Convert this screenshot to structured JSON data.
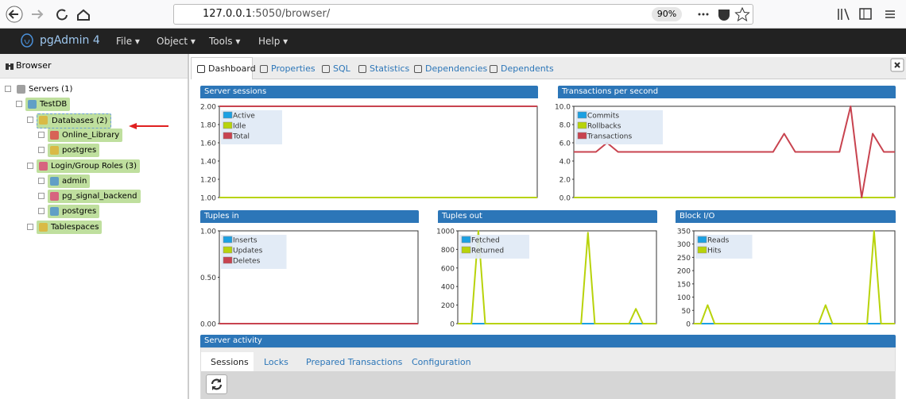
{
  "browser_bar": {
    "url_host": "127.0.0.1",
    "url_path": ":5050/browser/",
    "zoom": "90%"
  },
  "navbar": {
    "brand": "pgAdmin 4",
    "menus": [
      "File ▾",
      "Object ▾",
      "Tools ▾",
      "Help ▾"
    ]
  },
  "browser_panel": {
    "title": "Browser",
    "tree": [
      {
        "label": "Servers (1)",
        "level": 0
      },
      {
        "label": "TestDB",
        "level": 1
      },
      {
        "label": "Databases (2)",
        "level": 2
      },
      {
        "label": "Online_Library",
        "level": 3
      },
      {
        "label": "postgres",
        "level": 3
      },
      {
        "label": "Login/Group Roles (3)",
        "level": 2
      },
      {
        "label": "admin",
        "level": 3
      },
      {
        "label": "pg_signal_backend",
        "level": 3
      },
      {
        "label": "postgres",
        "level": 3
      },
      {
        "label": "Tablespaces",
        "level": 2
      }
    ]
  },
  "tabs": [
    "Dashboard",
    "Properties",
    "SQL",
    "Statistics",
    "Dependencies",
    "Dependents"
  ],
  "chart_data": [
    {
      "type": "line",
      "title": "Server sessions",
      "ylim": [
        1,
        2
      ],
      "yticks": [
        {
          "value": 1,
          "label": "1.00"
        },
        {
          "value": 1.2,
          "label": "1.20"
        },
        {
          "value": 1.4,
          "label": "1.40"
        },
        {
          "value": 1.6,
          "label": "1.60"
        },
        {
          "value": 1.8,
          "label": "1.80"
        },
        {
          "value": 2,
          "label": "2.00"
        }
      ],
      "series": [
        {
          "name": "Active",
          "color": "#1ba0e2",
          "values": [
            1,
            1,
            1,
            1,
            1,
            1,
            1,
            1,
            1,
            1,
            1,
            1,
            1,
            1,
            1,
            1,
            1,
            1,
            1,
            1
          ]
        },
        {
          "name": "Idle",
          "color": "#b8d30b",
          "values": [
            1,
            1,
            1,
            1,
            1,
            1,
            1,
            1,
            1,
            1,
            1,
            1,
            1,
            1,
            1,
            1,
            1,
            1,
            1,
            1
          ]
        },
        {
          "name": "Total",
          "color": "#c8434f",
          "values": [
            2,
            2,
            2,
            2,
            2,
            2,
            2,
            2,
            2,
            2,
            2,
            2,
            2,
            2,
            2,
            2,
            2,
            2,
            2,
            2
          ]
        }
      ]
    },
    {
      "type": "line",
      "title": "Transactions per second",
      "ylim": [
        0,
        10
      ],
      "yticks": [
        {
          "value": 0,
          "label": "0.0"
        },
        {
          "value": 2,
          "label": "2.0"
        },
        {
          "value": 4,
          "label": "4.0"
        },
        {
          "value": 6,
          "label": "6.0"
        },
        {
          "value": 8,
          "label": "8.0"
        },
        {
          "value": 10,
          "label": "10.0"
        }
      ],
      "series": [
        {
          "name": "Commits",
          "color": "#1ba0e2",
          "values": [
            0,
            0,
            0,
            0,
            0,
            0,
            0,
            0,
            0,
            0,
            0,
            0,
            0,
            0,
            0,
            0,
            0,
            0,
            0,
            0,
            0,
            0,
            0,
            0,
            0,
            0,
            0,
            0,
            0,
            0
          ]
        },
        {
          "name": "Rollbacks",
          "color": "#b8d30b",
          "values": [
            0,
            0,
            0,
            0,
            0,
            0,
            0,
            0,
            0,
            0,
            0,
            0,
            0,
            0,
            0,
            0,
            0,
            0,
            0,
            0,
            0,
            0,
            0,
            0,
            0,
            0,
            0,
            0,
            0,
            0
          ]
        },
        {
          "name": "Transactions",
          "color": "#c8434f",
          "values": [
            5,
            5,
            5,
            6,
            5,
            5,
            5,
            5,
            5,
            5,
            5,
            5,
            5,
            5,
            5,
            5,
            5,
            5,
            5,
            7,
            5,
            5,
            5,
            5,
            5,
            10,
            0,
            7,
            5,
            5
          ]
        }
      ]
    },
    {
      "type": "line",
      "title": "Tuples in",
      "ylim": [
        0,
        1
      ],
      "yticks": [
        {
          "value": 0,
          "label": "0.00"
        },
        {
          "value": 0.5,
          "label": "0.50"
        },
        {
          "value": 1,
          "label": "1.00"
        }
      ],
      "series": [
        {
          "name": "Inserts",
          "color": "#1ba0e2",
          "values": [
            0,
            0,
            0,
            0,
            0,
            0,
            0,
            0,
            0,
            0,
            0,
            0,
            0,
            0,
            0,
            0,
            0,
            0,
            0,
            0
          ]
        },
        {
          "name": "Updates",
          "color": "#b8d30b",
          "values": [
            0,
            0,
            0,
            0,
            0,
            0,
            0,
            0,
            0,
            0,
            0,
            0,
            0,
            0,
            0,
            0,
            0,
            0,
            0,
            0
          ]
        },
        {
          "name": "Deletes",
          "color": "#c8434f",
          "values": [
            0,
            0,
            0,
            0,
            0,
            0,
            0,
            0,
            0,
            0,
            0,
            0,
            0,
            0,
            0,
            0,
            0,
            0,
            0,
            0
          ]
        }
      ]
    },
    {
      "type": "line",
      "title": "Tuples out",
      "ylim": [
        0,
        1000
      ],
      "yticks": [
        0,
        200,
        400,
        600,
        800,
        1000
      ],
      "series": [
        {
          "name": "Fetched",
          "color": "#1ba0e2",
          "values": [
            0,
            0,
            0,
            0,
            0,
            0,
            0,
            0,
            0,
            0,
            0,
            0,
            0,
            0,
            0,
            0,
            0,
            0,
            0,
            0,
            0,
            0,
            0,
            0,
            0,
            0,
            0,
            0,
            0,
            0
          ]
        },
        {
          "name": "Returned",
          "color": "#b8d30b",
          "values": [
            0,
            0,
            0,
            1000,
            0,
            0,
            0,
            0,
            0,
            0,
            0,
            0,
            0,
            0,
            0,
            0,
            0,
            0,
            0,
            980,
            0,
            0,
            0,
            0,
            0,
            0,
            160,
            0,
            0,
            0
          ]
        }
      ]
    },
    {
      "type": "line",
      "title": "Block I/O",
      "ylim": [
        0,
        350
      ],
      "yticks": [
        0,
        50,
        100,
        150,
        200,
        250,
        300,
        350
      ],
      "series": [
        {
          "name": "Reads",
          "color": "#1ba0e2",
          "values": [
            0,
            0,
            0,
            0,
            0,
            0,
            0,
            0,
            0,
            0,
            0,
            0,
            0,
            0,
            0,
            0,
            0,
            0,
            0,
            0,
            0,
            0,
            0,
            0,
            0,
            0,
            0,
            0,
            0,
            0
          ]
        },
        {
          "name": "Hits",
          "color": "#b8d30b",
          "values": [
            0,
            0,
            70,
            0,
            0,
            0,
            0,
            0,
            0,
            0,
            0,
            0,
            0,
            0,
            0,
            0,
            0,
            0,
            0,
            70,
            0,
            0,
            0,
            0,
            0,
            0,
            350,
            0,
            0,
            0
          ]
        }
      ]
    }
  ],
  "server_activity": {
    "title": "Server activity",
    "tabs": [
      "Sessions",
      "Locks",
      "Prepared Transactions",
      "Configuration"
    ]
  }
}
